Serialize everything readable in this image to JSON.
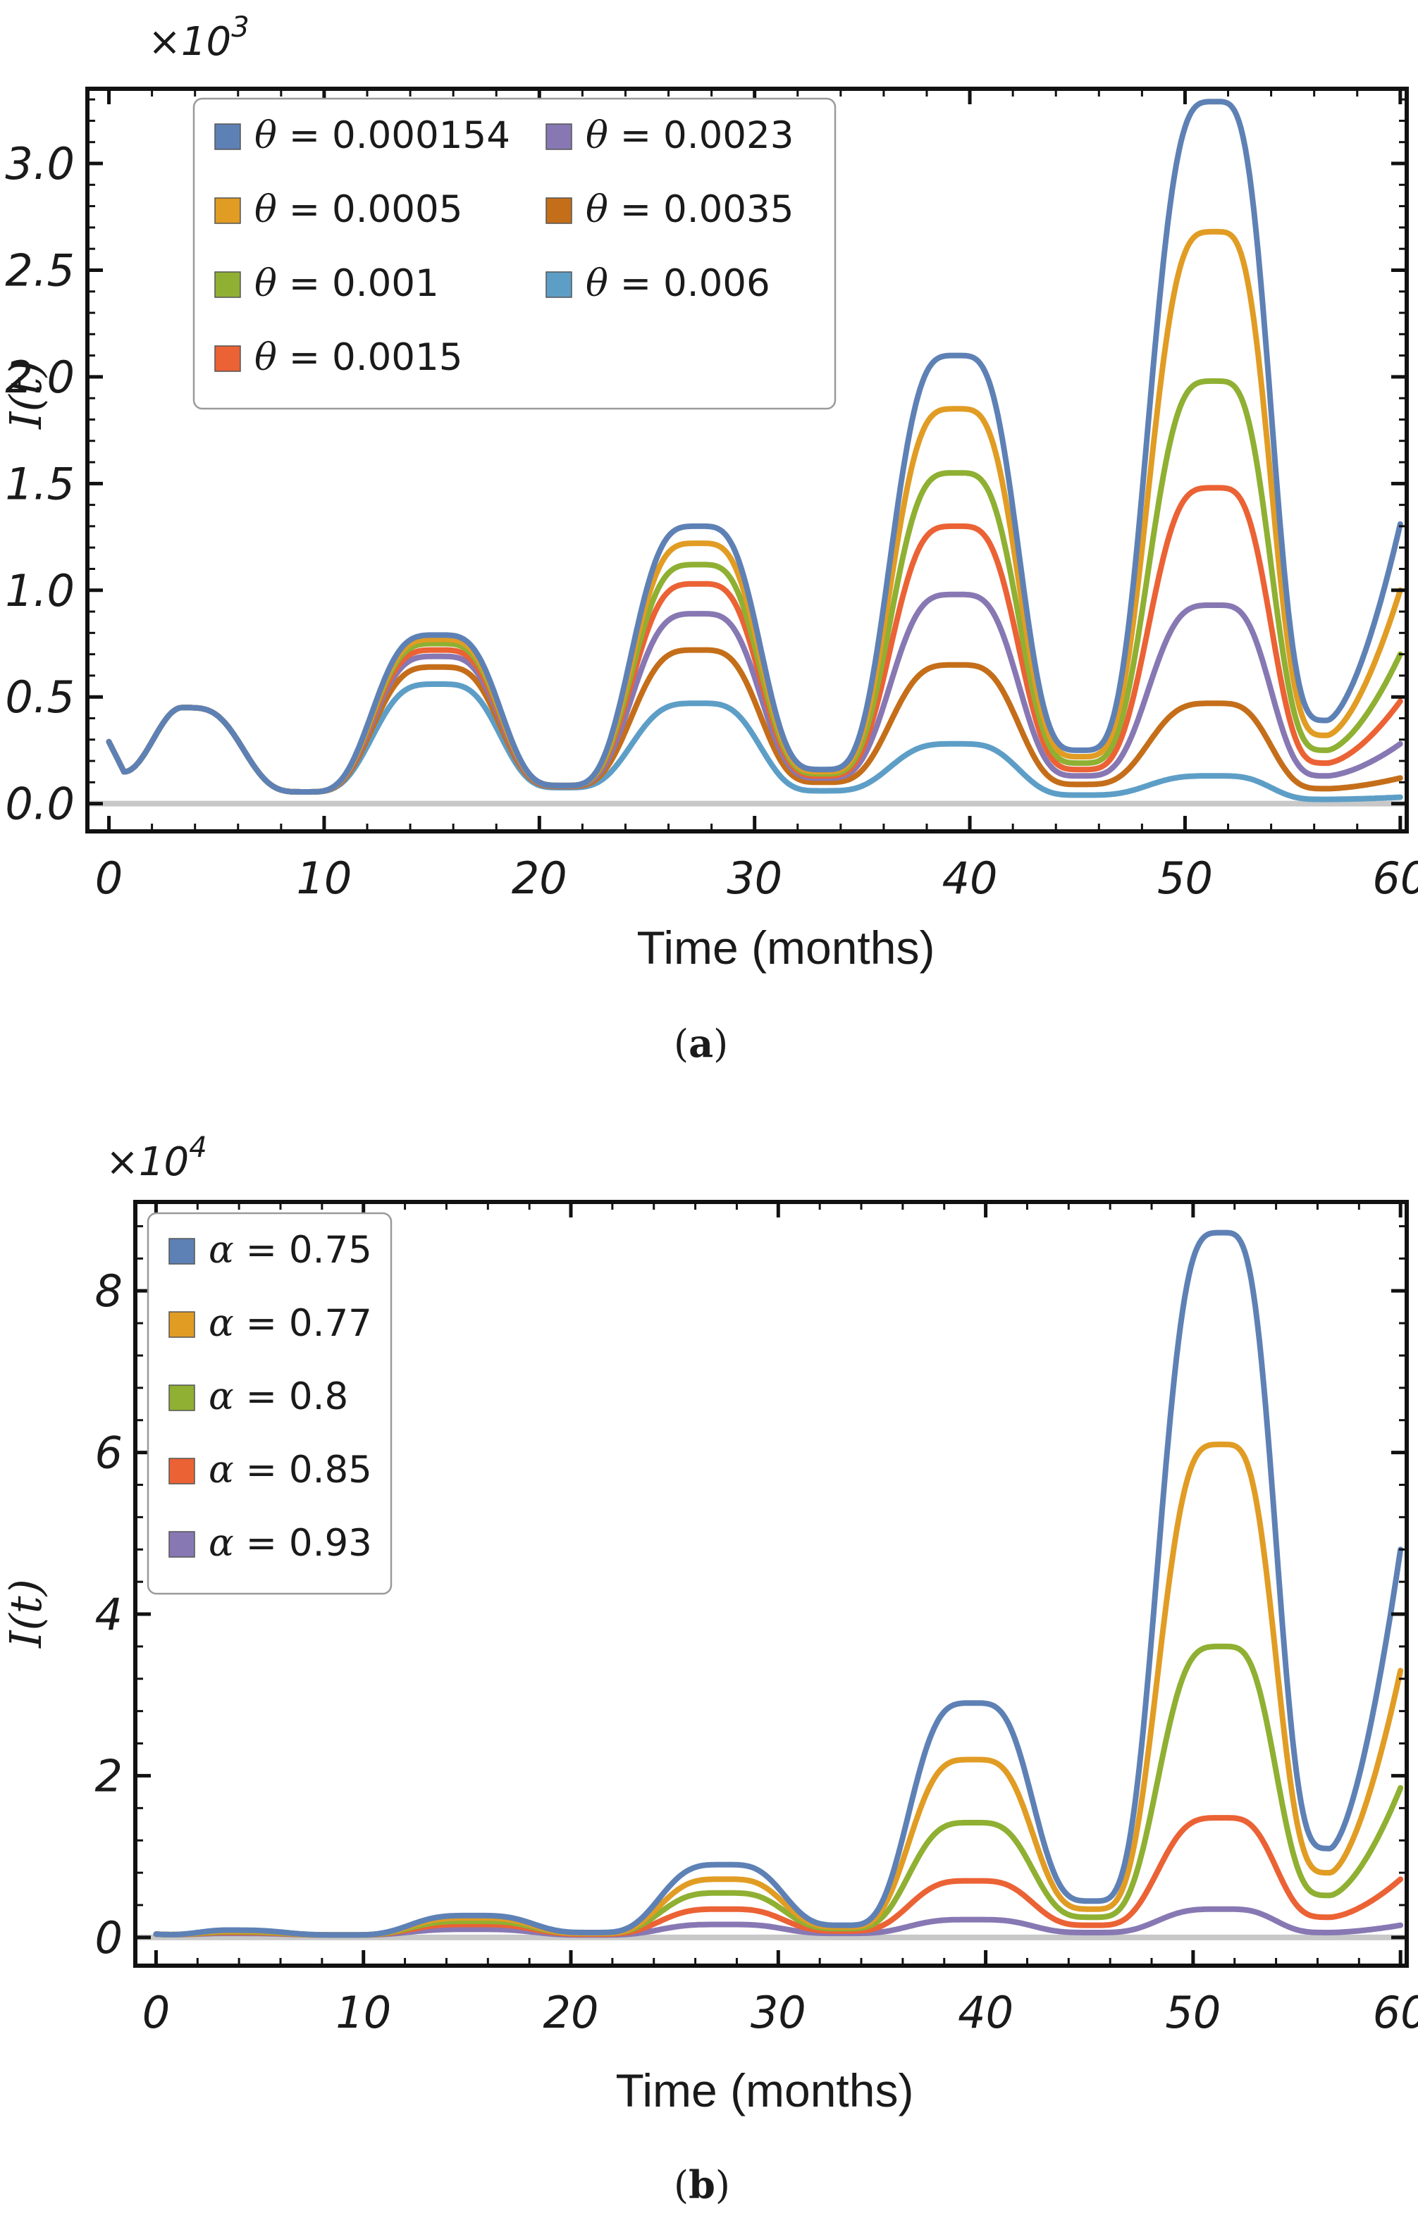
{
  "chart_data": [
    {
      "id": "a",
      "type": "line",
      "panel_label": "a",
      "xlabel": "Time (months)",
      "ylabel": "I(t)",
      "y_multiplier": "×10",
      "y_multiplier_exp": "3",
      "xlim": [
        -1,
        60.3
      ],
      "ylim": [
        -0.13,
        3.35
      ],
      "xticks": [
        0,
        10,
        20,
        30,
        40,
        50,
        60
      ],
      "xtick_labels": [
        "0",
        "10",
        "20",
        "30",
        "40",
        "50",
        "60"
      ],
      "yticks": [
        0,
        0.5,
        1,
        1.5,
        2,
        2.5,
        3
      ],
      "ytick_labels": [
        "0.0",
        "0.5",
        "1.0",
        "1.5",
        "2.0",
        "2.5",
        "3.0"
      ],
      "legend_symbol": "θ",
      "legend_columns": 2,
      "legend_position": "top-left",
      "series": [
        {
          "name": "θ = 0.000154",
          "value": "0.000154",
          "color": "#5E81B5",
          "peaks": [
            0.45,
            0.79,
            1.3,
            2.1,
            3.29
          ],
          "end": 1.31,
          "mins": [
            0.055,
            0.085,
            0.16,
            0.25,
            0.39
          ]
        },
        {
          "name": "θ = 0.0005",
          "value": "0.0005",
          "color": "#E19C24",
          "peaks": [
            0.45,
            0.77,
            1.22,
            1.85,
            2.68
          ],
          "end": 1.0,
          "mins": [
            0.055,
            0.085,
            0.15,
            0.22,
            0.32
          ]
        },
        {
          "name": "θ = 0.001",
          "value": "0.001",
          "color": "#8FB032",
          "peaks": [
            0.45,
            0.75,
            1.12,
            1.55,
            1.98
          ],
          "end": 0.7,
          "mins": [
            0.055,
            0.085,
            0.14,
            0.19,
            0.25
          ]
        },
        {
          "name": "θ = 0.0015",
          "value": "0.0015",
          "color": "#EB6235",
          "peaks": [
            0.45,
            0.72,
            1.03,
            1.3,
            1.48
          ],
          "end": 0.48,
          "mins": [
            0.055,
            0.085,
            0.13,
            0.16,
            0.19
          ]
        },
        {
          "name": "θ = 0.0023",
          "value": "0.0023",
          "color": "#8778B3",
          "peaks": [
            0.45,
            0.69,
            0.89,
            0.98,
            0.93
          ],
          "end": 0.28,
          "mins": [
            0.055,
            0.083,
            0.12,
            0.13,
            0.13
          ]
        },
        {
          "name": "θ = 0.0035",
          "value": "0.0035",
          "color": "#C56E1A",
          "peaks": [
            0.45,
            0.64,
            0.72,
            0.65,
            0.47
          ],
          "end": 0.12,
          "mins": [
            0.055,
            0.08,
            0.1,
            0.09,
            0.07
          ]
        },
        {
          "name": "θ = 0.006",
          "value": "0.006",
          "color": "#5D9EC7",
          "peaks": [
            0.45,
            0.56,
            0.47,
            0.28,
            0.13
          ],
          "end": 0.03,
          "mins": [
            0.055,
            0.075,
            0.06,
            0.04,
            0.02
          ]
        }
      ]
    },
    {
      "id": "b",
      "type": "line",
      "panel_label": "b",
      "xlabel": "Time (months)",
      "ylabel": "I(t)",
      "y_multiplier": "×10",
      "y_multiplier_exp": "4",
      "xlim": [
        -1,
        60.3
      ],
      "ylim": [
        -0.35,
        9.1
      ],
      "xticks": [
        0,
        10,
        20,
        30,
        40,
        50,
        60
      ],
      "xtick_labels": [
        "0",
        "10",
        "20",
        "30",
        "40",
        "50",
        "60"
      ],
      "yticks": [
        0,
        2,
        4,
        6,
        8
      ],
      "ytick_labels": [
        "0",
        "2",
        "4",
        "6",
        "8"
      ],
      "legend_symbol": "α",
      "legend_columns": 1,
      "legend_position": "top-left",
      "series": [
        {
          "name": "α = 0.75",
          "value": "0.75",
          "color": "#5E81B5",
          "peaks": [
            0.09,
            0.27,
            0.9,
            2.9,
            8.72
          ],
          "end": 4.8,
          "mins": [
            0.03,
            0.06,
            0.15,
            0.45,
            1.1
          ]
        },
        {
          "name": "α = 0.77",
          "value": "0.77",
          "color": "#E19C24",
          "peaks": [
            0.08,
            0.24,
            0.72,
            2.2,
            6.1
          ],
          "end": 3.3,
          "mins": [
            0.03,
            0.05,
            0.13,
            0.35,
            0.8
          ]
        },
        {
          "name": "α = 0.8",
          "value": "0.8",
          "color": "#8FB032",
          "peaks": [
            0.07,
            0.2,
            0.55,
            1.42,
            3.6
          ],
          "end": 1.85,
          "mins": [
            0.03,
            0.05,
            0.11,
            0.25,
            0.52
          ]
        },
        {
          "name": "α = 0.85",
          "value": "0.85",
          "color": "#EB6235",
          "peaks": [
            0.06,
            0.16,
            0.35,
            0.7,
            1.48
          ],
          "end": 0.72,
          "mins": [
            0.03,
            0.04,
            0.08,
            0.15,
            0.25
          ]
        },
        {
          "name": "α = 0.93",
          "value": "0.93",
          "color": "#8778B3",
          "peaks": [
            0.05,
            0.1,
            0.16,
            0.22,
            0.35
          ],
          "end": 0.15,
          "mins": [
            0.03,
            0.03,
            0.05,
            0.06,
            0.06
          ]
        }
      ]
    }
  ]
}
